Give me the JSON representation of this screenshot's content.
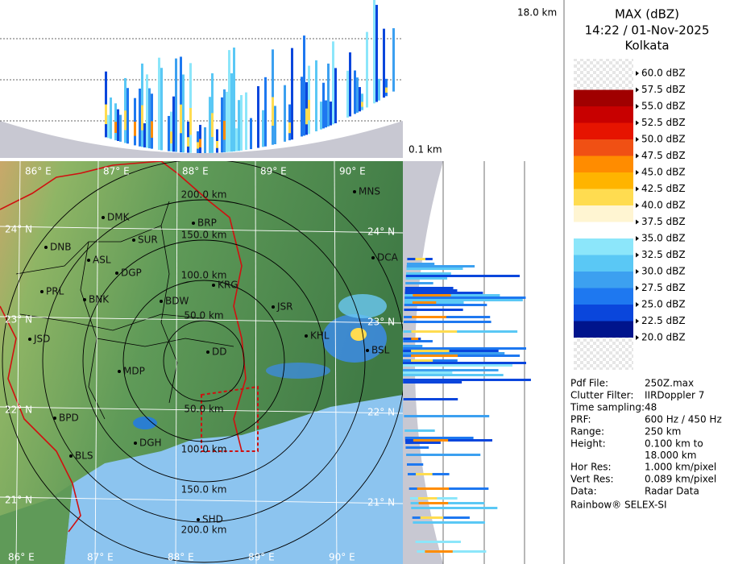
{
  "header": {
    "title": "MAX (dBZ)",
    "datetime": "14:22 / 01-Nov-2025",
    "station": "Kolkata"
  },
  "height_labels": {
    "top": "18.0 km",
    "bottom": "0.1 km"
  },
  "legend": [
    {
      "label": "60.0 dBZ",
      "color": "#f2f2f2"
    },
    {
      "label": "57.5 dBZ",
      "color": "#a00000"
    },
    {
      "label": "55.0 dBZ",
      "color": "#c80000"
    },
    {
      "label": "52.5 dBZ",
      "color": "#e61400"
    },
    {
      "label": "50.0 dBZ",
      "color": "#f05014"
    },
    {
      "label": "47.5 dBZ",
      "color": "#ff8c00"
    },
    {
      "label": "45.0 dBZ",
      "color": "#ffb400"
    },
    {
      "label": "42.5 dBZ",
      "color": "#ffdc50"
    },
    {
      "label": "40.0 dBZ",
      "color": "#fff5d2"
    },
    {
      "label": "37.5 dBZ",
      "color": "#ffffff"
    },
    {
      "label": "35.0 dBZ",
      "color": "#8ce6fa"
    },
    {
      "label": "32.5 dBZ",
      "color": "#5ac8f5"
    },
    {
      "label": "30.0 dBZ",
      "color": "#3ca0f0"
    },
    {
      "label": "27.5 dBZ",
      "color": "#1e78f0"
    },
    {
      "label": "25.0 dBZ",
      "color": "#0a46dc"
    },
    {
      "label": "22.5 dBZ",
      "color": "#00148c"
    },
    {
      "label": "20.0 dBZ",
      "color": "#f2f2f2"
    }
  ],
  "info": [
    [
      "Pdf File:",
      "250Z.max"
    ],
    [
      "Clutter Filter:",
      "IIRDoppler 7"
    ],
    [
      "Time sampling:48"
    ],
    [
      "PRF:",
      "600 Hz / 450 Hz"
    ],
    [
      "Range:",
      "250 km"
    ],
    [
      "Height:",
      "0.100 km to",
      "18.000 km"
    ],
    [
      "Hor Res:",
      "1.000 km/pixel"
    ],
    [
      "Vert Res:",
      "0.089 km/pixel"
    ],
    [
      "Data:",
      "Radar Data"
    ]
  ],
  "footer": "Rainbow® SELEX-SI",
  "map": {
    "lon_labels": [
      "86° E",
      "87° E",
      "88° E",
      "89° E",
      "90° E"
    ],
    "lat_labels": [
      "24° N",
      "23° N",
      "22° N",
      "21° N"
    ],
    "range_rings": [
      "50.0 km",
      "100.0 km",
      "150.0 km",
      "200.0 km"
    ],
    "cities": [
      "MNS",
      "DMK",
      "BRP",
      "DNB",
      "SUR",
      "ASL",
      "DCA",
      "DGP",
      "PRL",
      "BNK",
      "KRG",
      "BDW",
      "JSR",
      "KHL",
      "JSD",
      "DD",
      "BSL",
      "MDP",
      "BPD",
      "DGH",
      "BLS",
      "SHD"
    ]
  }
}
